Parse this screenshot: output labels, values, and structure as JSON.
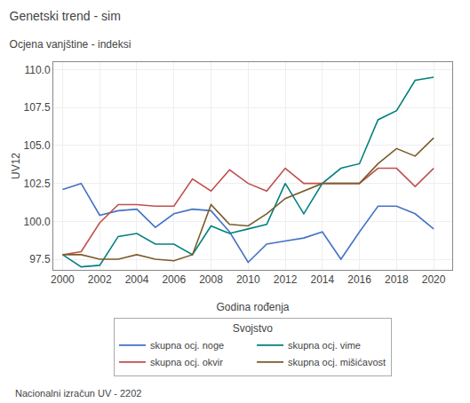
{
  "chart_data": {
    "type": "line",
    "title": "Genetski trend - sim",
    "subtitle": "Ocjena vanjštine - indeksi",
    "x_label": "Godina rođenja",
    "y_label": "UV12",
    "annotations": [
      "Nacionalni izračun UV - 2202"
    ],
    "legend_title": "Svojstvo",
    "legend": "bottom",
    "grid": true,
    "x": [
      2000,
      2001,
      2002,
      2003,
      2004,
      2005,
      2006,
      2007,
      2008,
      2009,
      2010,
      2011,
      2012,
      2013,
      2014,
      2015,
      2016,
      2017,
      2018,
      2019,
      2020
    ],
    "xlim": [
      1999.5,
      2021
    ],
    "xticks": [
      2000,
      2002,
      2004,
      2006,
      2008,
      2010,
      2012,
      2014,
      2016,
      2018,
      2020
    ],
    "ylim": [
      96.8,
      110.5
    ],
    "yticks": [
      97.5,
      {
        "value": 100,
        "label": "100.0"
      },
      102.5,
      {
        "value": 105,
        "label": "105.0"
      },
      107.5,
      {
        "value": 110,
        "label": "110.0"
      }
    ],
    "series": [
      {
        "name": "skupna ocj. noge",
        "color": "#4472C4",
        "values": [
          102.1,
          102.5,
          100.4,
          100.7,
          100.8,
          99.6,
          100.5,
          100.8,
          100.7,
          99.3,
          97.3,
          98.5,
          98.7,
          98.9,
          99.3,
          97.5,
          99.3,
          101.0,
          101.0,
          100.5,
          99.5
        ]
      },
      {
        "name": "skupna ocj. vime",
        "color": "#008080",
        "values": [
          97.8,
          97.0,
          97.1,
          99.0,
          99.2,
          98.5,
          98.5,
          97.8,
          99.7,
          99.2,
          99.5,
          99.8,
          102.5,
          100.5,
          102.5,
          103.5,
          103.8,
          106.7,
          107.3,
          109.3,
          109.5
        ]
      },
      {
        "name": "skupna ocj. okvir",
        "color": "#C0504D",
        "values": [
          97.8,
          98.0,
          99.9,
          101.1,
          101.1,
          101.0,
          101.0,
          102.8,
          102.0,
          103.4,
          102.5,
          102.0,
          103.5,
          102.5,
          102.5,
          102.5,
          102.5,
          103.5,
          103.5,
          102.3,
          103.5
        ]
      },
      {
        "name": "skupna ocj. mišićavost",
        "color": "#7B5B2A",
        "values": [
          97.8,
          97.8,
          97.5,
          97.5,
          97.8,
          97.5,
          97.4,
          97.8,
          101.1,
          99.8,
          99.7,
          100.5,
          101.5,
          102.0,
          102.5,
          102.5,
          102.5,
          103.8,
          104.8,
          104.3,
          105.5
        ]
      }
    ]
  }
}
